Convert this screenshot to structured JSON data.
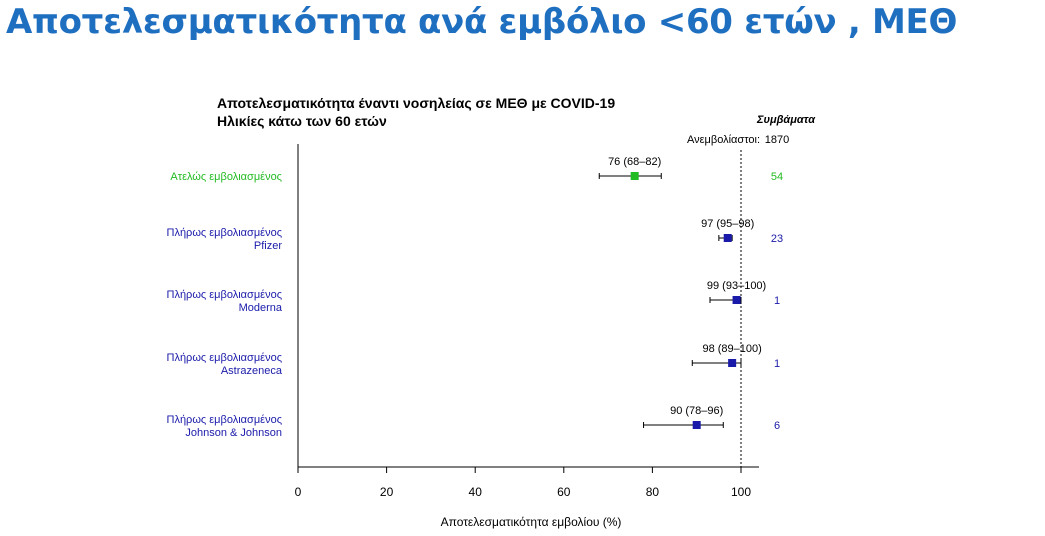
{
  "slide_title": "Αποτελεσματικότητα ανά εμβόλιο <60 ετών , ΜΕΘ",
  "chart_data": {
    "type": "forest",
    "title": "Αποτελεσματικότητα έναντι νοσηλείας σε ΜΕΘ με COVID-19",
    "subtitle": "Ηλικίες κάτω των 60 ετών",
    "xlabel": "Αποτελεσματικότητα εμβολίου (%)",
    "xlim": [
      0,
      104
    ],
    "xticks": [
      0,
      20,
      40,
      60,
      80,
      100
    ],
    "reference_line": 100,
    "events_header": "Συμβάματα",
    "unvaccinated_label": "Ανεμβολίαστοι:",
    "unvaccinated_events": "1870",
    "rows": [
      {
        "label": [
          "Ατελώς εμβολιασμένος"
        ],
        "estimate": 76,
        "lower": 68,
        "upper": 82,
        "ci_text": "76 (68–82)",
        "events": "54",
        "color": "#22bb22"
      },
      {
        "label": [
          "Πλήρως εμβολιασμένος",
          "Pfizer"
        ],
        "estimate": 97,
        "lower": 95,
        "upper": 98,
        "ci_text": "97 (95–98)",
        "events": "23",
        "color": "#1a1aaa"
      },
      {
        "label": [
          "Πλήρως εμβολιασμένος",
          "Moderna"
        ],
        "estimate": 99,
        "lower": 93,
        "upper": 100,
        "ci_text": "99 (93–100)",
        "events": "1",
        "color": "#1a1aaa"
      },
      {
        "label": [
          "Πλήρως εμβολιασμένος",
          "Astrazeneca"
        ],
        "estimate": 98,
        "lower": 89,
        "upper": 100,
        "ci_text": "98 (89–100)",
        "events": "1",
        "color": "#1a1aaa"
      },
      {
        "label": [
          "Πλήρως εμβολιασμένος",
          "Johnson & Johnson"
        ],
        "estimate": 90,
        "lower": 78,
        "upper": 96,
        "ci_text": "90 (78–96)",
        "events": "6",
        "color": "#1a1aaa"
      }
    ]
  }
}
